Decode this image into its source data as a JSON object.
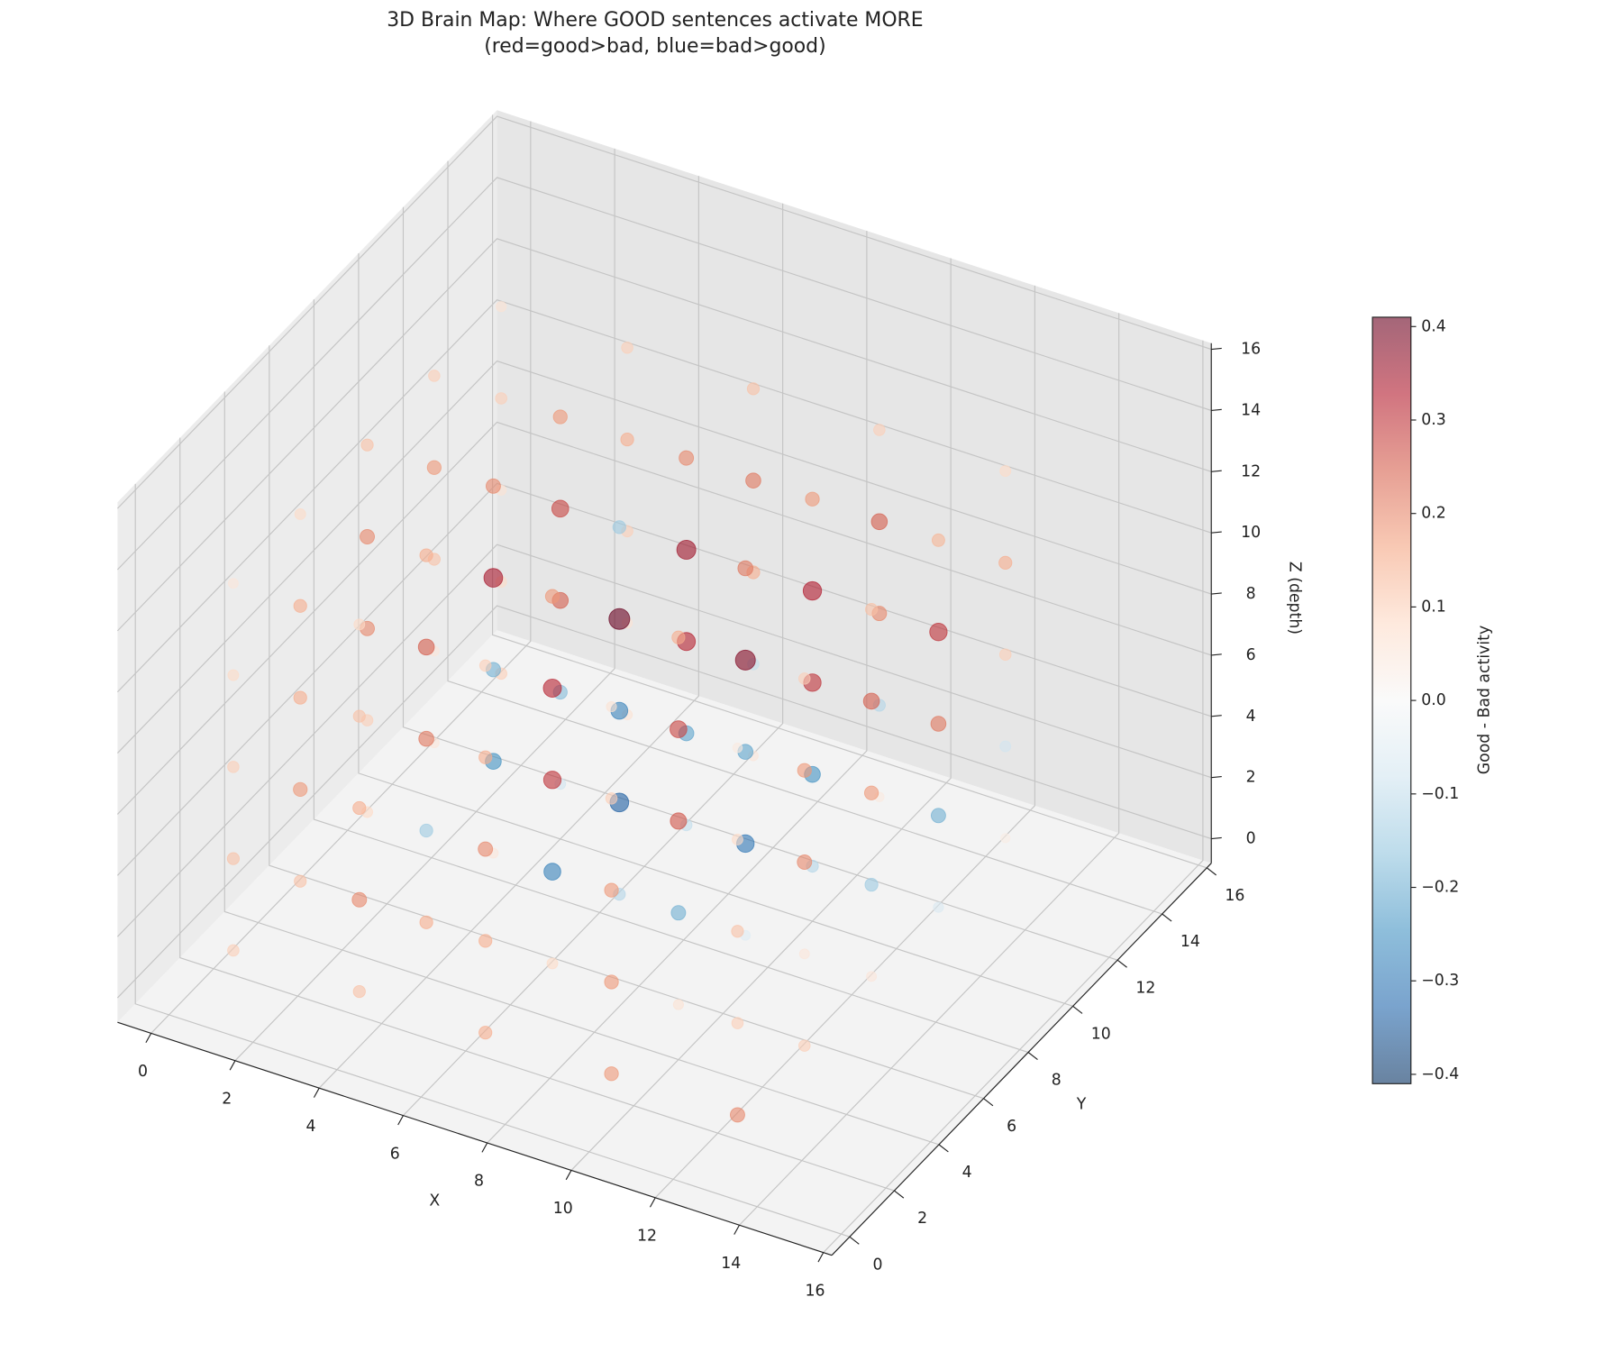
{
  "chart_data": {
    "type": "scatter3d",
    "title": "3D Brain Map: Where GOOD sentences activate MORE",
    "subtitle": "(red=good>bad, blue=bad>good)",
    "xlabel": "X",
    "ylabel": "Y",
    "zlabel": "Z (depth)",
    "xlim": [
      -0.8,
      16.2
    ],
    "ylim": [
      -0.8,
      16.2
    ],
    "zlim": [
      -0.8,
      16.2
    ],
    "xticks": [
      0,
      2,
      4,
      6,
      8,
      10,
      12,
      14,
      16
    ],
    "yticks": [
      0,
      2,
      4,
      6,
      8,
      10,
      12,
      14,
      16
    ],
    "zticks": [
      0,
      2,
      4,
      6,
      8,
      10,
      12,
      14,
      16
    ],
    "grid": true,
    "colormap": "RdBu_r",
    "clim": [
      -0.41,
      0.41
    ],
    "colorbar": {
      "label": "Good - Bad activity",
      "ticks": [
        {
          "value": -0.4,
          "label": "−0.4"
        },
        {
          "value": -0.3,
          "label": "−0.3"
        },
        {
          "value": -0.2,
          "label": "−0.2"
        },
        {
          "value": -0.1,
          "label": "−0.1"
        },
        {
          "value": 0,
          "label": "0.0"
        },
        0.1,
        0.2,
        0.3,
        0.4
      ]
    },
    "x": [
      1,
      1,
      1,
      1,
      1,
      4,
      4,
      4,
      4,
      4,
      7,
      7,
      7,
      7,
      7,
      10,
      10,
      10,
      10,
      10,
      13,
      13,
      13,
      13,
      13,
      1,
      1,
      1,
      1,
      1,
      4,
      4,
      4,
      4,
      4,
      7,
      7,
      7,
      7,
      7,
      10,
      10,
      10,
      10,
      10,
      13,
      13,
      13,
      13,
      13,
      1,
      1,
      1,
      1,
      1,
      4,
      4,
      4,
      4,
      4,
      7,
      7,
      7,
      7,
      7,
      10,
      10,
      10,
      10,
      10,
      13,
      13,
      13,
      13,
      13,
      1,
      1,
      1,
      1,
      1,
      4,
      4,
      4,
      4,
      4,
      7,
      7,
      7,
      7,
      7,
      10,
      10,
      10,
      10,
      10,
      13,
      13,
      13,
      13,
      13,
      1,
      1,
      1,
      1,
      1,
      4,
      4,
      4,
      4,
      4,
      7,
      7,
      7,
      7,
      7,
      10,
      10,
      10,
      10,
      10,
      13,
      13,
      13,
      13,
      13
    ],
    "y": [
      1,
      4,
      7,
      10,
      13,
      1,
      4,
      7,
      10,
      13,
      1,
      4,
      7,
      10,
      13,
      1,
      4,
      7,
      10,
      13,
      1,
      4,
      7,
      10,
      13,
      1,
      4,
      7,
      10,
      13,
      1,
      4,
      7,
      10,
      13,
      1,
      4,
      7,
      10,
      13,
      1,
      4,
      7,
      10,
      13,
      1,
      4,
      7,
      10,
      13,
      1,
      4,
      7,
      10,
      13,
      1,
      4,
      7,
      10,
      13,
      1,
      4,
      7,
      10,
      13,
      1,
      4,
      7,
      10,
      13,
      1,
      4,
      7,
      10,
      13,
      1,
      4,
      7,
      10,
      13,
      1,
      4,
      7,
      10,
      13,
      1,
      4,
      7,
      10,
      13,
      1,
      4,
      7,
      10,
      13,
      1,
      4,
      7,
      10,
      13,
      1,
      4,
      7,
      10,
      13,
      1,
      4,
      7,
      10,
      13,
      1,
      4,
      7,
      10,
      13,
      1,
      4,
      7,
      10,
      13,
      1,
      4,
      7,
      10,
      13
    ],
    "z": [
      1,
      1,
      1,
      1,
      1,
      1,
      1,
      1,
      1,
      1,
      1,
      1,
      1,
      1,
      1,
      1,
      1,
      1,
      1,
      1,
      1,
      1,
      1,
      1,
      1,
      4,
      4,
      4,
      4,
      4,
      4,
      4,
      4,
      4,
      4,
      4,
      4,
      4,
      4,
      4,
      4,
      4,
      4,
      4,
      4,
      4,
      4,
      4,
      4,
      4,
      7,
      7,
      7,
      7,
      7,
      7,
      7,
      7,
      7,
      7,
      7,
      7,
      7,
      7,
      7,
      7,
      7,
      7,
      7,
      7,
      7,
      7,
      7,
      7,
      7,
      10,
      10,
      10,
      10,
      10,
      10,
      10,
      10,
      10,
      10,
      10,
      10,
      10,
      10,
      10,
      10,
      10,
      10,
      10,
      10,
      10,
      10,
      10,
      10,
      10,
      13,
      13,
      13,
      13,
      13,
      13,
      13,
      13,
      13,
      13,
      13,
      13,
      13,
      13,
      13,
      13,
      13,
      13,
      13,
      13,
      13,
      13,
      13,
      13,
      13
    ],
    "values": [
      0.1,
      0.12,
      0.08,
      0.05,
      0.1,
      0.12,
      0.15,
      0.05,
      -0.08,
      0.06,
      0.15,
      0.08,
      -0.12,
      -0.1,
      0.05,
      0.18,
      0.06,
      -0.05,
      -0.12,
      0.04,
      0.2,
      0.1,
      0.05,
      -0.06,
      0.03,
      0.12,
      0.18,
      0.1,
      0.05,
      0.08,
      0.2,
      -0.15,
      -0.25,
      -0.18,
      0.06,
      0.15,
      -0.28,
      -0.34,
      -0.22,
      -0.1,
      0.18,
      -0.2,
      -0.3,
      -0.25,
      -0.12,
      0.1,
      0.05,
      -0.15,
      -0.2,
      -0.08,
      0.1,
      0.15,
      0.2,
      0.12,
      0.06,
      0.15,
      0.22,
      -0.2,
      0.25,
      0.1,
      0.2,
      0.3,
      -0.28,
      0.32,
      0.15,
      0.18,
      0.26,
      -0.22,
      0.3,
      0.2,
      0.12,
      0.2,
      0.18,
      0.22,
      0.1,
      0.08,
      0.15,
      0.2,
      0.18,
      0.1,
      0.12,
      0.25,
      0.34,
      0.28,
      0.15,
      0.15,
      0.32,
      0.41,
      0.35,
      0.22,
      0.1,
      0.28,
      0.38,
      0.33,
      0.25,
      0.08,
      0.18,
      0.25,
      0.3,
      0.15,
      0.05,
      0.08,
      0.12,
      0.1,
      0.06,
      0.08,
      0.15,
      0.2,
      0.18,
      0.1,
      0.1,
      0.18,
      -0.15,
      0.2,
      0.12,
      0.06,
      0.15,
      0.22,
      0.18,
      0.1,
      0.04,
      0.1,
      0.12,
      0.14,
      0.08
    ]
  }
}
